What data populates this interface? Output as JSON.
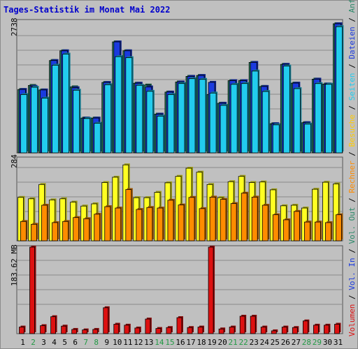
{
  "title": "Tages-Statistik im Monat Mai 2022",
  "colors": {
    "anfragen": "#2c8a6a",
    "dateien": "#1a3adf",
    "seiten": "#22ccee",
    "besuche": "#ffff22",
    "rechner": "#ff8c00",
    "vol_in": "#1a3adf",
    "vol_out": "#2c8a6a",
    "volumen": "#dd1111",
    "day_black": "#000000",
    "day_green": "#229944"
  },
  "legend": [
    {
      "label": "Volumen",
      "color": "#dd1111"
    },
    {
      "label": " / ",
      "color": "#000000"
    },
    {
      "label": "Vol. In",
      "color": "#1a3adf"
    },
    {
      "label": " / ",
      "color": "#000000"
    },
    {
      "label": "Vol. Out",
      "color": "#2c8a6a"
    },
    {
      "label": " / ",
      "color": "#000000"
    },
    {
      "label": "Rechner",
      "color": "#ff8c00"
    },
    {
      "label": " / ",
      "color": "#000000"
    },
    {
      "label": "Besuche",
      "color": "#ffcc00"
    },
    {
      "label": " / ",
      "color": "#000000"
    },
    {
      "label": "Seiten",
      "color": "#22ccee"
    },
    {
      "label": " / ",
      "color": "#000000"
    },
    {
      "label": "Dateien",
      "color": "#1a3adf"
    },
    {
      "label": " / ",
      "color": "#000000"
    },
    {
      "label": "Anfragen",
      "color": "#2c8a6a"
    }
  ],
  "chart_data": [
    {
      "type": "bar",
      "name": "hits",
      "ymax_label": "2738",
      "ylim": [
        0,
        2738
      ],
      "grid": true,
      "categories": [
        "1",
        "2",
        "3",
        "4",
        "5",
        "6",
        "7",
        "8",
        "9",
        "10",
        "11",
        "12",
        "13",
        "14",
        "15",
        "16",
        "17",
        "18",
        "19",
        "20",
        "21",
        "22",
        "23",
        "24",
        "25",
        "26",
        "27",
        "28",
        "29",
        "30",
        "31"
      ],
      "series": [
        {
          "name": "Anfragen",
          "values": [
            1344,
            1430,
            1334,
            1958,
            2164,
            1400,
            738,
            738,
            1493,
            2353,
            2164,
            1477,
            1438,
            821,
            1289,
            1503,
            1622,
            1641,
            1236,
            1052,
            1531,
            1531,
            1918,
            1408,
            618,
            1877,
            1479,
            640,
            1563,
            1460,
            2738
          ]
        },
        {
          "name": "Dateien",
          "values": [
            1344,
            1410,
            1334,
            1958,
            2164,
            1380,
            738,
            738,
            1493,
            2353,
            2164,
            1477,
            1398,
            821,
            1289,
            1503,
            1622,
            1641,
            1496,
            1052,
            1531,
            1531,
            1918,
            1408,
            618,
            1877,
            1479,
            640,
            1563,
            1460,
            2738
          ]
        },
        {
          "name": "Seiten",
          "values": [
            1236,
            1391,
            1160,
            1859,
            2094,
            1328,
            728,
            627,
            1444,
            2040,
            2018,
            1432,
            1305,
            779,
            1236,
            1470,
            1573,
            1558,
            1268,
            1007,
            1453,
            1470,
            1734,
            1301,
            594,
            1840,
            1362,
            609,
            1469,
            1454,
            2676
          ]
        }
      ]
    },
    {
      "type": "bar",
      "name": "visits",
      "ymax_label": "284",
      "ylim": [
        0,
        284
      ],
      "grid": true,
      "categories": [
        "1",
        "2",
        "3",
        "4",
        "5",
        "6",
        "7",
        "8",
        "9",
        "10",
        "11",
        "12",
        "13",
        "14",
        "15",
        "16",
        "17",
        "18",
        "19",
        "20",
        "21",
        "22",
        "23",
        "24",
        "25",
        "26",
        "27",
        "28",
        "29",
        "30",
        "31"
      ],
      "series": [
        {
          "name": "Besuche",
          "values": [
            155,
            150,
            201,
            146,
            150,
            138,
            124,
            132,
            208,
            227,
            271,
            154,
            154,
            173,
            207,
            230,
            259,
            245,
            201,
            154,
            211,
            230,
            208,
            210,
            182,
            125,
            127,
            117,
            184,
            209,
            203
          ]
        },
        {
          "name": "Rechner",
          "values": [
            69,
            59,
            127,
            65,
            69,
            83,
            79,
            95,
            122,
            117,
            183,
            112,
            119,
            117,
            145,
            128,
            155,
            115,
            156,
            148,
            133,
            170,
            156,
            127,
            93,
            75,
            105,
            67,
            67,
            65,
            93
          ]
        }
      ]
    },
    {
      "type": "bar",
      "name": "volume",
      "ymax_label": "183.62 MB",
      "ylim": [
        0,
        183.62
      ],
      "grid": true,
      "categories": [
        "1",
        "2",
        "3",
        "4",
        "5",
        "6",
        "7",
        "8",
        "9",
        "10",
        "11",
        "12",
        "13",
        "14",
        "15",
        "16",
        "17",
        "18",
        "19",
        "20",
        "21",
        "22",
        "23",
        "24",
        "25",
        "26",
        "27",
        "28",
        "29",
        "30",
        "31"
      ],
      "series": [
        {
          "name": "Volumen",
          "values": [
            14,
            183.62,
            17,
            36,
            16,
            9,
            8,
            9,
            55,
            20,
            18,
            12,
            31,
            11,
            13,
            34,
            13,
            14,
            183.62,
            10,
            14,
            37,
            37,
            14,
            6,
            14,
            13,
            27,
            18,
            18,
            20
          ]
        }
      ]
    }
  ],
  "day_labels": [
    {
      "text": "1",
      "weekend": false
    },
    {
      "text": "2",
      "weekend": true
    },
    {
      "text": "3",
      "weekend": false
    },
    {
      "text": "4",
      "weekend": false
    },
    {
      "text": "5",
      "weekend": false
    },
    {
      "text": "6",
      "weekend": false
    },
    {
      "text": "7",
      "weekend": true
    },
    {
      "text": "8",
      "weekend": true
    },
    {
      "text": "9",
      "weekend": false
    },
    {
      "text": "10",
      "weekend": false
    },
    {
      "text": "11",
      "weekend": false
    },
    {
      "text": "12",
      "weekend": false
    },
    {
      "text": "13",
      "weekend": false
    },
    {
      "text": "14",
      "weekend": true
    },
    {
      "text": "15",
      "weekend": true
    },
    {
      "text": "16",
      "weekend": false
    },
    {
      "text": "17",
      "weekend": false
    },
    {
      "text": "18",
      "weekend": false
    },
    {
      "text": "19",
      "weekend": false
    },
    {
      "text": "20",
      "weekend": false
    },
    {
      "text": "21",
      "weekend": true
    },
    {
      "text": "22",
      "weekend": true
    },
    {
      "text": "23",
      "weekend": false
    },
    {
      "text": "24",
      "weekend": false
    },
    {
      "text": "25",
      "weekend": false
    },
    {
      "text": "26",
      "weekend": false
    },
    {
      "text": "27",
      "weekend": false
    },
    {
      "text": "28",
      "weekend": true
    },
    {
      "text": "29",
      "weekend": true
    },
    {
      "text": "30",
      "weekend": false
    },
    {
      "text": "31",
      "weekend": false
    }
  ]
}
